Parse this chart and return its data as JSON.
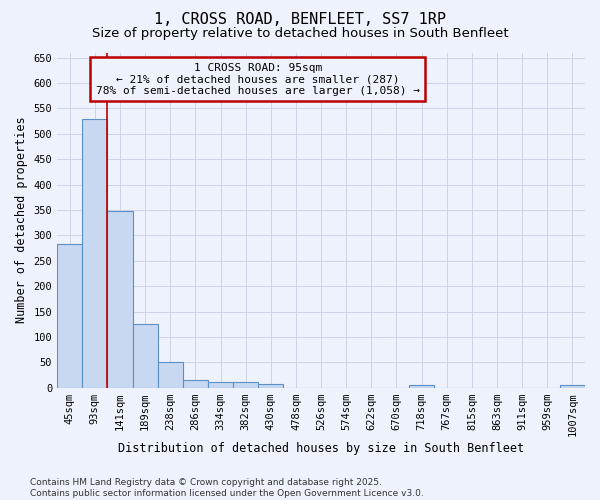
{
  "title": "1, CROSS ROAD, BENFLEET, SS7 1RP",
  "subtitle": "Size of property relative to detached houses in South Benfleet",
  "bar_values": [
    283,
    530,
    348,
    125,
    50,
    16,
    11,
    11,
    7,
    0,
    0,
    0,
    0,
    0,
    6,
    0,
    0,
    0,
    0,
    0,
    6
  ],
  "categories": [
    "45sqm",
    "93sqm",
    "141sqm",
    "189sqm",
    "238sqm",
    "286sqm",
    "334sqm",
    "382sqm",
    "430sqm",
    "478sqm",
    "526sqm",
    "574sqm",
    "622sqm",
    "670sqm",
    "718sqm",
    "767sqm",
    "815sqm",
    "863sqm",
    "911sqm",
    "959sqm",
    "1007sqm"
  ],
  "bar_color": "#c8d8f0",
  "bar_edge_color": "#5b8fc8",
  "xlabel": "Distribution of detached houses by size in South Benfleet",
  "ylabel": "Number of detached properties",
  "ylim": [
    0,
    660
  ],
  "yticks": [
    0,
    50,
    100,
    150,
    200,
    250,
    300,
    350,
    400,
    450,
    500,
    550,
    600,
    650
  ],
  "vline_x": 1.5,
  "vline_color": "#bb0000",
  "annotation_box_text": "1 CROSS ROAD: 95sqm\n← 21% of detached houses are smaller (287)\n78% of semi-detached houses are larger (1,058) →",
  "footer_line1": "Contains HM Land Registry data © Crown copyright and database right 2025.",
  "footer_line2": "Contains public sector information licensed under the Open Government Licence v3.0.",
  "grid_color": "#ccd4e8",
  "background_color": "#eef2fc",
  "title_fontsize": 11,
  "subtitle_fontsize": 9.5,
  "axis_label_fontsize": 8.5,
  "tick_fontsize": 7.5,
  "annotation_fontsize": 8,
  "footer_fontsize": 6.5
}
